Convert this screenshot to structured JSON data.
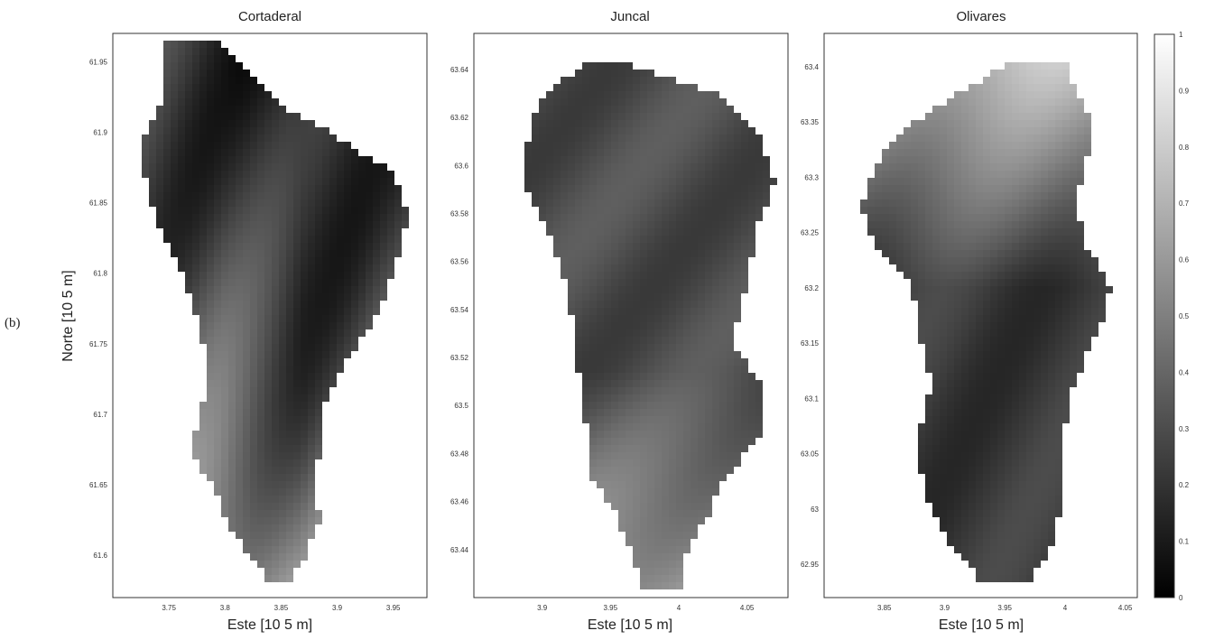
{
  "panel_label": "(b)",
  "chart_data": [
    {
      "type": "heatmap",
      "title": "Cortaderal",
      "xlabel": "Este [10 5 m]",
      "ylabel": "Norte [10 5 m]",
      "xlim": [
        3.7,
        3.98
      ],
      "ylim": [
        61.57,
        61.97
      ],
      "xticks": [
        "3.75",
        "3.8",
        "3.85",
        "3.9",
        "3.95"
      ],
      "yticks": [
        "61.6",
        "61.65",
        "61.7",
        "61.75",
        "61.8",
        "61.85",
        "61.9",
        "61.95"
      ],
      "colorscale": [
        "#000000",
        "#ffffff"
      ]
    },
    {
      "type": "heatmap",
      "title": "Juncal",
      "xlabel": "Este [10 5 m]",
      "ylabel": "",
      "xlim": [
        3.85,
        4.08
      ],
      "ylim": [
        63.42,
        63.655
      ],
      "xticks": [
        "3.9",
        "3.95",
        "4",
        "4.05"
      ],
      "yticks": [
        "63.44",
        "63.46",
        "63.48",
        "63.5",
        "63.52",
        "63.54",
        "63.56",
        "63.58",
        "63.6",
        "63.62",
        "63.64"
      ],
      "colorscale": [
        "#000000",
        "#ffffff"
      ]
    },
    {
      "type": "heatmap",
      "title": "Olivares",
      "xlabel": "Este [10 5 m]",
      "ylabel": "",
      "xlim": [
        3.8,
        4.06
      ],
      "ylim": [
        62.92,
        63.43
      ],
      "xticks": [
        "3.85",
        "3.9",
        "3.95",
        "4",
        "4.05"
      ],
      "yticks": [
        "62.95",
        "63",
        "63.05",
        "63.1",
        "63.15",
        "63.2",
        "63.25",
        "63.3",
        "63.35",
        "63.4"
      ],
      "colorscale": [
        "#000000",
        "#ffffff"
      ]
    }
  ],
  "colorbar": {
    "range": [
      0,
      1
    ],
    "ticks": [
      "0",
      "0.1",
      "0.2",
      "0.3",
      "0.4",
      "0.5",
      "0.6",
      "0.7",
      "0.8",
      "0.9",
      "1"
    ]
  }
}
